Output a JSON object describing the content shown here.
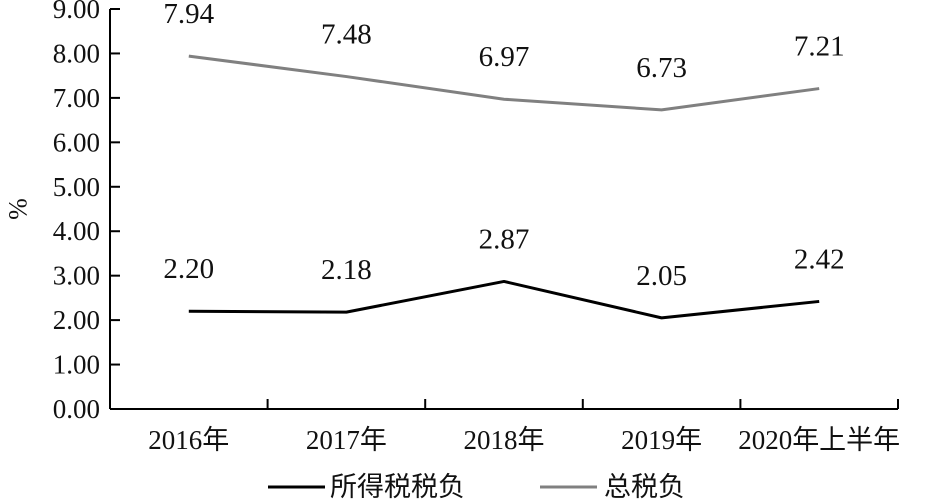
{
  "chart_data": {
    "type": "line",
    "categories": [
      "2016年",
      "2017年",
      "2018年",
      "2019年",
      "2020年上半年"
    ],
    "ylabel": "%",
    "ylim": [
      0,
      9
    ],
    "yticks": [
      "0.00",
      "1.00",
      "2.00",
      "3.00",
      "4.00",
      "5.00",
      "6.00",
      "7.00",
      "8.00",
      "9.00"
    ],
    "grid": false,
    "legend_position": "bottom",
    "series": [
      {
        "name": "所得税税负",
        "values": [
          2.2,
          2.18,
          2.87,
          2.05,
          2.42
        ],
        "labels": [
          "2.20",
          "2.18",
          "2.87",
          "2.05",
          "2.42"
        ],
        "color": "#000000"
      },
      {
        "name": "总税负",
        "values": [
          7.94,
          7.48,
          6.97,
          6.73,
          7.21
        ],
        "labels": [
          "7.94",
          "7.48",
          "6.97",
          "6.73",
          "7.21"
        ],
        "color": "#808080"
      }
    ]
  }
}
